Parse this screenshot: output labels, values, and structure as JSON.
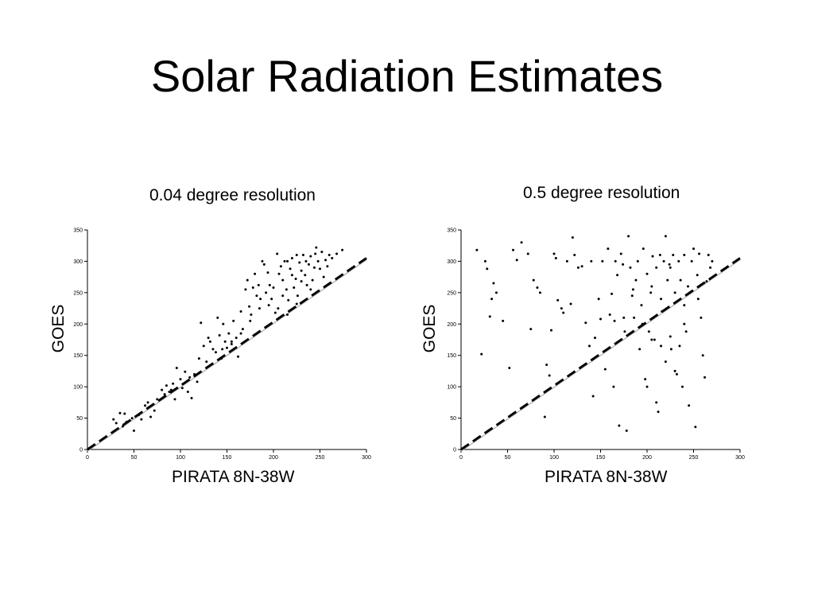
{
  "title": "Solar Radiation Estimates",
  "chart_data": [
    {
      "type": "scatter",
      "title": "0.04 degree resolution",
      "xlabel": "PIRATA 8N-38W",
      "ylabel": "GOES",
      "xlim": [
        0,
        300
      ],
      "ylim": [
        0,
        350
      ],
      "xticks": [
        "0",
        "50",
        "100",
        "150",
        "200",
        "250",
        "300"
      ],
      "yticks": [
        "0",
        "50",
        "100",
        "150",
        "200",
        "250",
        "300",
        "350"
      ],
      "reference_line": {
        "style": "dashed",
        "color": "#000000",
        "from": [
          0,
          0
        ],
        "to": [
          300,
          305
        ]
      },
      "series": [
        {
          "color": "#000000",
          "points": [
            [
              28,
              48
            ],
            [
              31,
              42
            ],
            [
              35,
              58
            ],
            [
              38,
              37
            ],
            [
              40,
              57
            ],
            [
              42,
              44
            ],
            [
              48,
              50
            ],
            [
              50,
              30
            ],
            [
              55,
              55
            ],
            [
              58,
              48
            ],
            [
              62,
              70
            ],
            [
              65,
              75
            ],
            [
              68,
              52
            ],
            [
              72,
              62
            ],
            [
              75,
              80
            ],
            [
              80,
              95
            ],
            [
              83,
              88
            ],
            [
              85,
              102
            ],
            [
              88,
              92
            ],
            [
              90,
              95
            ],
            [
              92,
              105
            ],
            [
              94,
              80
            ],
            [
              96,
              130
            ],
            [
              100,
              112
            ],
            [
              102,
              98
            ],
            [
              105,
              124
            ],
            [
              108,
              92
            ],
            [
              110,
              115
            ],
            [
              112,
              82
            ],
            [
              115,
              120
            ],
            [
              118,
              108
            ],
            [
              120,
              145
            ],
            [
              122,
              202
            ],
            [
              125,
              165
            ],
            [
              128,
              140
            ],
            [
              130,
              178
            ],
            [
              132,
              172
            ],
            [
              135,
              160
            ],
            [
              138,
              155
            ],
            [
              140,
              210
            ],
            [
              142,
              182
            ],
            [
              144,
              145
            ],
            [
              146,
              200
            ],
            [
              148,
              172
            ],
            [
              150,
              162
            ],
            [
              152,
              185
            ],
            [
              155,
              168
            ],
            [
              157,
              205
            ],
            [
              160,
              178
            ],
            [
              162,
              148
            ],
            [
              165,
              220
            ],
            [
              167,
              192
            ],
            [
              170,
              255
            ],
            [
              172,
              270
            ],
            [
              174,
              228
            ],
            [
              176,
              215
            ],
            [
              178,
              258
            ],
            [
              180,
              280
            ],
            [
              182,
              245
            ],
            [
              184,
              262
            ],
            [
              186,
              240
            ],
            [
              188,
              300
            ],
            [
              190,
              295
            ],
            [
              192,
              250
            ],
            [
              194,
              282
            ],
            [
              196,
              262
            ],
            [
              198,
              240
            ],
            [
              200,
              258
            ],
            [
              202,
              218
            ],
            [
              204,
              312
            ],
            [
              206,
              280
            ],
            [
              208,
              292
            ],
            [
              210,
              270
            ],
            [
              212,
              300
            ],
            [
              214,
              255
            ],
            [
              216,
              238
            ],
            [
              218,
              288
            ],
            [
              220,
              305
            ],
            [
              222,
              258
            ],
            [
              224,
              272
            ],
            [
              226,
              245
            ],
            [
              228,
              298
            ],
            [
              230,
              285
            ],
            [
              232,
              310
            ],
            [
              234,
              278
            ],
            [
              236,
              262
            ],
            [
              238,
              295
            ],
            [
              240,
              308
            ],
            [
              242,
              270
            ],
            [
              244,
              290
            ],
            [
              246,
              322
            ],
            [
              248,
              300
            ],
            [
              250,
              288
            ],
            [
              252,
              315
            ],
            [
              254,
              275
            ],
            [
              256,
              302
            ],
            [
              258,
              292
            ],
            [
              260,
              310
            ],
            [
              263,
              305
            ],
            [
              268,
              312
            ],
            [
              274,
              318
            ],
            [
              195,
              230
            ],
            [
              205,
              225
            ],
            [
              215,
              215
            ],
            [
              225,
              232
            ],
            [
              185,
              225
            ],
            [
              175,
              205
            ],
            [
              165,
              185
            ],
            [
              155,
              172
            ],
            [
              145,
              160
            ],
            [
              215,
              300
            ],
            [
              225,
              310
            ],
            [
              235,
              300
            ],
            [
              245,
              312
            ],
            [
              210,
              245
            ],
            [
              220,
              278
            ],
            [
              230,
              268
            ],
            [
              240,
              255
            ]
          ]
        }
      ]
    },
    {
      "type": "scatter",
      "title": "0.5 degree resolution",
      "xlabel": "PIRATA 8N-38W",
      "ylabel": "GOES",
      "xlim": [
        0,
        300
      ],
      "ylim": [
        0,
        350
      ],
      "xticks": [
        "0",
        "50",
        "100",
        "150",
        "200",
        "250",
        "300"
      ],
      "yticks": [
        "0",
        "50",
        "100",
        "150",
        "200",
        "250",
        "300",
        "350"
      ],
      "reference_line": {
        "style": "dashed",
        "color": "#000000",
        "from": [
          0,
          0
        ],
        "to": [
          300,
          305
        ]
      },
      "series": [
        {
          "color": "#000000",
          "points": [
            [
              17,
              318
            ],
            [
              22,
              152
            ],
            [
              26,
              300
            ],
            [
              28,
              288
            ],
            [
              31,
              212
            ],
            [
              33,
              240
            ],
            [
              35,
              265
            ],
            [
              38,
              250
            ],
            [
              45,
              205
            ],
            [
              52,
              130
            ],
            [
              56,
              318
            ],
            [
              60,
              302
            ],
            [
              65,
              330
            ],
            [
              72,
              312
            ],
            [
              75,
              192
            ],
            [
              78,
              270
            ],
            [
              82,
              258
            ],
            [
              85,
              250
            ],
            [
              90,
              52
            ],
            [
              92,
              135
            ],
            [
              95,
              118
            ],
            [
              97,
              190
            ],
            [
              100,
              312
            ],
            [
              102,
              305
            ],
            [
              104,
              238
            ],
            [
              108,
              225
            ],
            [
              110,
              218
            ],
            [
              114,
              300
            ],
            [
              118,
              232
            ],
            [
              120,
              338
            ],
            [
              122,
              310
            ],
            [
              126,
              290
            ],
            [
              130,
              292
            ],
            [
              134,
              202
            ],
            [
              138,
              165
            ],
            [
              140,
              300
            ],
            [
              142,
              85
            ],
            [
              144,
              178
            ],
            [
              148,
              240
            ],
            [
              150,
              208
            ],
            [
              152,
              300
            ],
            [
              155,
              128
            ],
            [
              158,
              320
            ],
            [
              160,
              215
            ],
            [
              162,
              248
            ],
            [
              164,
              100
            ],
            [
              166,
              300
            ],
            [
              168,
              278
            ],
            [
              170,
              38
            ],
            [
              172,
              312
            ],
            [
              174,
              295
            ],
            [
              176,
              188
            ],
            [
              178,
              30
            ],
            [
              180,
              340
            ],
            [
              182,
              290
            ],
            [
              184,
              245
            ],
            [
              186,
              210
            ],
            [
              188,
              270
            ],
            [
              190,
              300
            ],
            [
              192,
              160
            ],
            [
              194,
              230
            ],
            [
              196,
              320
            ],
            [
              198,
              112
            ],
            [
              200,
              280
            ],
            [
              202,
              188
            ],
            [
              204,
              250
            ],
            [
              206,
              308
            ],
            [
              208,
              175
            ],
            [
              210,
              290
            ],
            [
              212,
              60
            ],
            [
              214,
              310
            ],
            [
              216,
              220
            ],
            [
              218,
              300
            ],
            [
              220,
              340
            ],
            [
              222,
              270
            ],
            [
              224,
              295
            ],
            [
              226,
              160
            ],
            [
              228,
              310
            ],
            [
              230,
              250
            ],
            [
              232,
              120
            ],
            [
              234,
              300
            ],
            [
              236,
              270
            ],
            [
              238,
              100
            ],
            [
              240,
              310
            ],
            [
              242,
              188
            ],
            [
              244,
              260
            ],
            [
              246,
              250
            ],
            [
              248,
              300
            ],
            [
              250,
              320
            ],
            [
              252,
              36
            ],
            [
              254,
              278
            ],
            [
              256,
              312
            ],
            [
              258,
              210
            ],
            [
              260,
              150
            ],
            [
              262,
              115
            ],
            [
              264,
              268
            ],
            [
              266,
              310
            ],
            [
              268,
              290
            ],
            [
              270,
              300
            ],
            [
              205,
              175
            ],
            [
              215,
              165
            ],
            [
              225,
              180
            ],
            [
              210,
              75
            ],
            [
              220,
              140
            ],
            [
              230,
              125
            ],
            [
              240,
              200
            ],
            [
              200,
              100
            ],
            [
              235,
              165
            ],
            [
              245,
              70
            ],
            [
              195,
              200
            ],
            [
              185,
              255
            ],
            [
              215,
              240
            ],
            [
              225,
              290
            ],
            [
              240,
              230
            ],
            [
              255,
              240
            ],
            [
              205,
              260
            ],
            [
              175,
              210
            ],
            [
              165,
              205
            ]
          ]
        }
      ]
    }
  ]
}
